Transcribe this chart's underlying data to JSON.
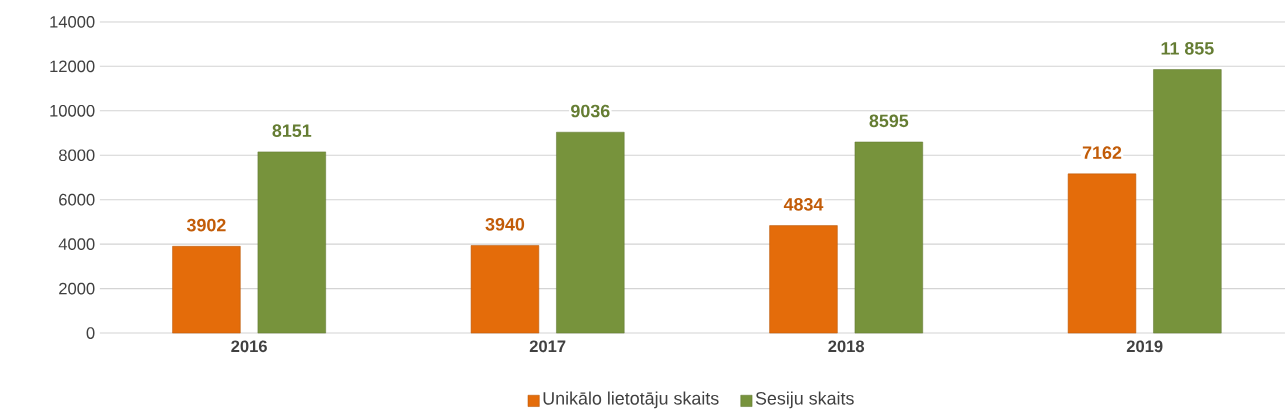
{
  "chart_data": {
    "type": "bar",
    "categories": [
      "2016",
      "2017",
      "2018",
      "2019"
    ],
    "series": [
      {
        "name": "Unikālo lietotāju skaits",
        "color": "#e46c0a",
        "values": [
          3902,
          3940,
          4834,
          7162
        ],
        "value_labels": [
          "3902",
          "3940",
          "4834",
          "7162"
        ]
      },
      {
        "name": "Sesiju skaits",
        "color": "#77933c",
        "values": [
          8151,
          9036,
          8595,
          11855
        ],
        "value_labels": [
          "8151",
          "9036",
          "8595",
          "11 855"
        ]
      }
    ],
    "ylim": [
      0,
      14000
    ],
    "yticks": [
      0,
      2000,
      4000,
      6000,
      8000,
      10000,
      12000,
      14000
    ],
    "grid": "y",
    "legend": "bottom"
  }
}
